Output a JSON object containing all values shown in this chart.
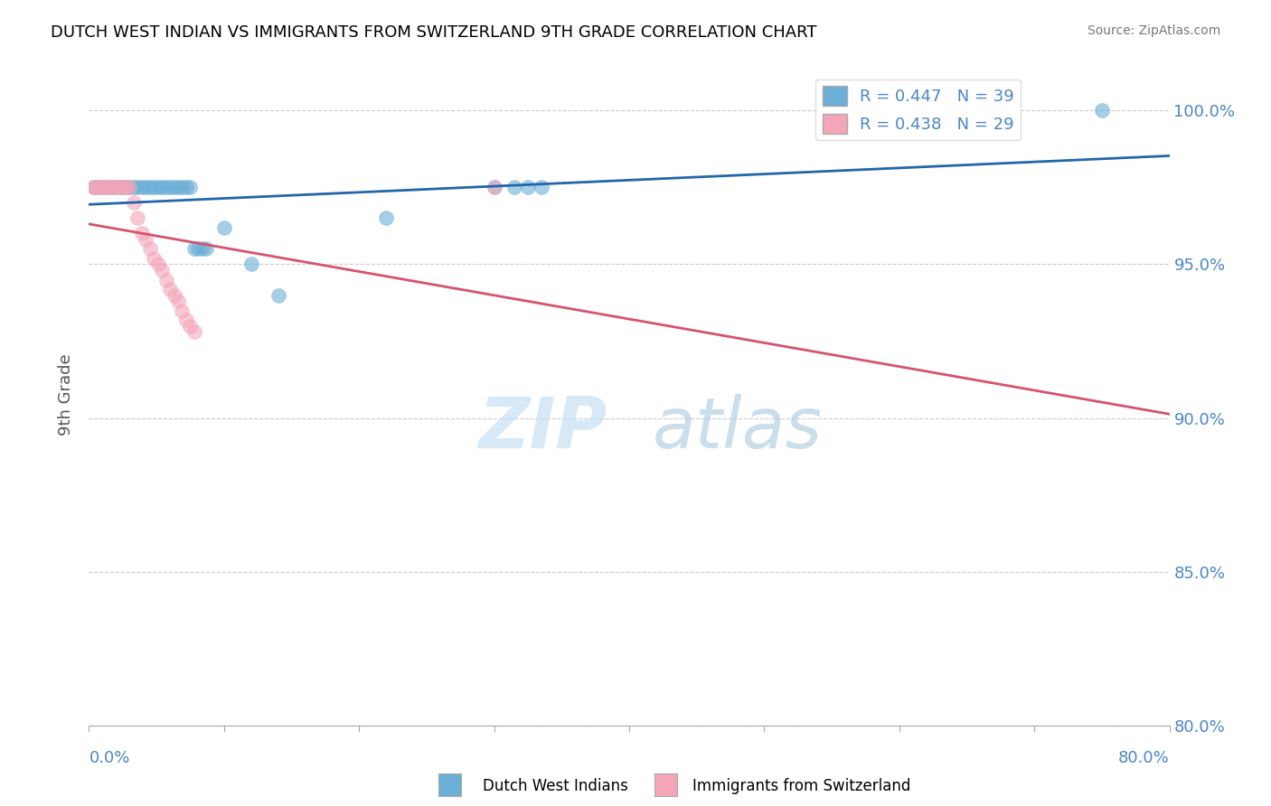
{
  "title": "DUTCH WEST INDIAN VS IMMIGRANTS FROM SWITZERLAND 9TH GRADE CORRELATION CHART",
  "source": "Source: ZipAtlas.com",
  "ylabel": "9th Grade",
  "y_ticks": [
    80.0,
    85.0,
    90.0,
    95.0,
    100.0
  ],
  "x_min": 0.0,
  "x_max": 80.0,
  "y_min": 80.0,
  "y_max": 101.5,
  "blue_R": 0.447,
  "blue_N": 39,
  "pink_R": 0.438,
  "pink_N": 29,
  "blue_color": "#6baed6",
  "pink_color": "#f4a6b8",
  "blue_line_color": "#2166ac",
  "pink_line_color": "#d6536d",
  "blue_scatter_x": [
    0.4,
    0.7,
    1.0,
    1.2,
    1.5,
    1.8,
    2.0,
    2.3,
    2.5,
    2.8,
    3.0,
    3.3,
    3.6,
    3.9,
    4.2,
    4.5,
    4.8,
    5.1,
    5.4,
    5.7,
    6.0,
    6.3,
    6.6,
    6.9,
    7.2,
    7.5,
    7.8,
    8.1,
    8.4,
    8.7,
    10.0,
    12.0,
    14.0,
    22.0,
    30.0,
    31.5,
    32.5,
    33.5,
    75.0
  ],
  "blue_scatter_y": [
    97.5,
    97.5,
    97.5,
    97.5,
    97.5,
    97.5,
    97.5,
    97.5,
    97.5,
    97.5,
    97.5,
    97.5,
    97.5,
    97.5,
    97.5,
    97.5,
    97.5,
    97.5,
    97.5,
    97.5,
    97.5,
    97.5,
    97.5,
    97.5,
    97.5,
    97.5,
    95.5,
    95.5,
    95.5,
    95.5,
    96.2,
    95.0,
    94.0,
    96.5,
    97.5,
    97.5,
    97.5,
    97.5,
    100.0
  ],
  "pink_scatter_x": [
    0.3,
    0.5,
    0.8,
    1.0,
    1.2,
    1.5,
    1.8,
    2.0,
    2.3,
    2.5,
    2.8,
    3.0,
    3.3,
    3.6,
    3.9,
    4.2,
    4.5,
    4.8,
    5.1,
    5.4,
    5.7,
    6.0,
    6.3,
    6.6,
    6.9,
    7.2,
    7.5,
    7.8,
    30.0
  ],
  "pink_scatter_y": [
    97.5,
    97.5,
    97.5,
    97.5,
    97.5,
    97.5,
    97.5,
    97.5,
    97.5,
    97.5,
    97.5,
    97.5,
    97.0,
    96.5,
    96.0,
    95.8,
    95.5,
    95.2,
    95.0,
    94.8,
    94.5,
    94.2,
    94.0,
    93.8,
    93.5,
    93.2,
    93.0,
    92.8,
    97.5
  ]
}
